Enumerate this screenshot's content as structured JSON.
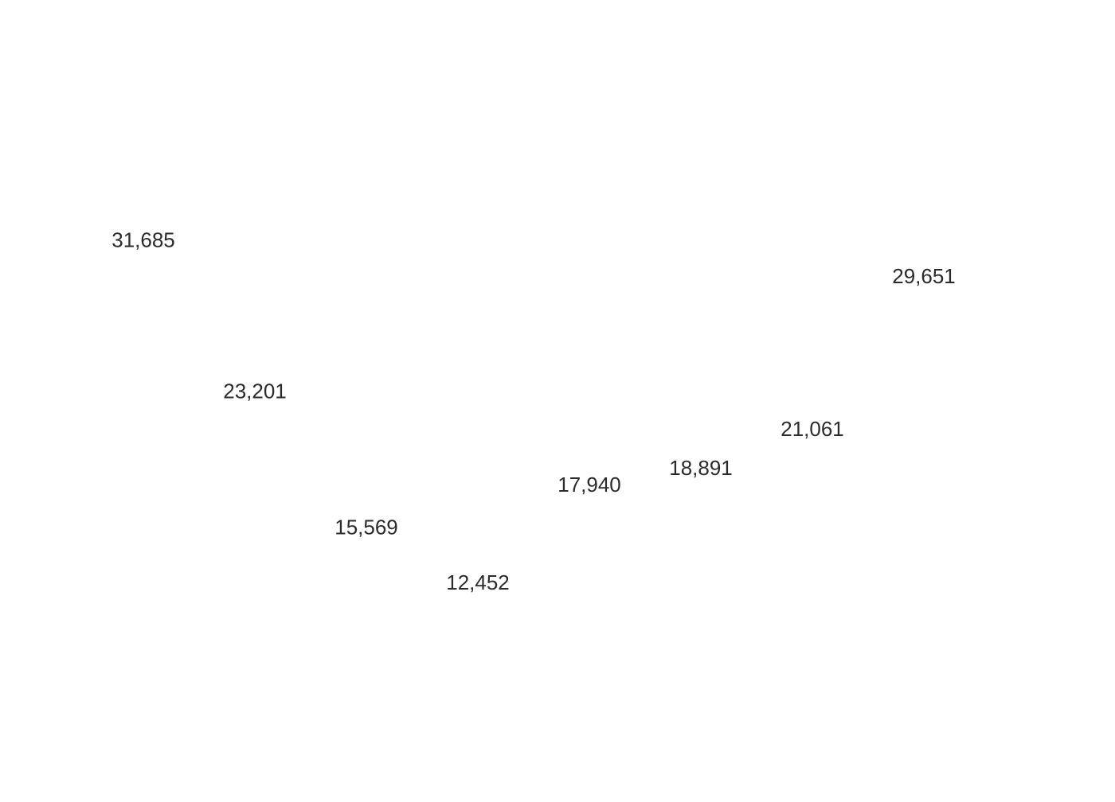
{
  "chart_data": {
    "type": "scatter",
    "x": [
      1,
      2,
      3,
      4,
      5,
      6,
      7,
      8
    ],
    "values": [
      31685,
      23201,
      15569,
      12452,
      17940,
      18891,
      21061,
      29651
    ],
    "data_labels": [
      "31,685",
      "23,201",
      "15,569",
      "12,452",
      "17,940",
      "18,891",
      "21,061",
      "29,651"
    ],
    "xlim": [
      0,
      9
    ],
    "ylim": [
      0,
      45000
    ],
    "grid": false,
    "label_color": "#2b2b2b",
    "title": "",
    "xlabel": "",
    "ylabel": ""
  }
}
